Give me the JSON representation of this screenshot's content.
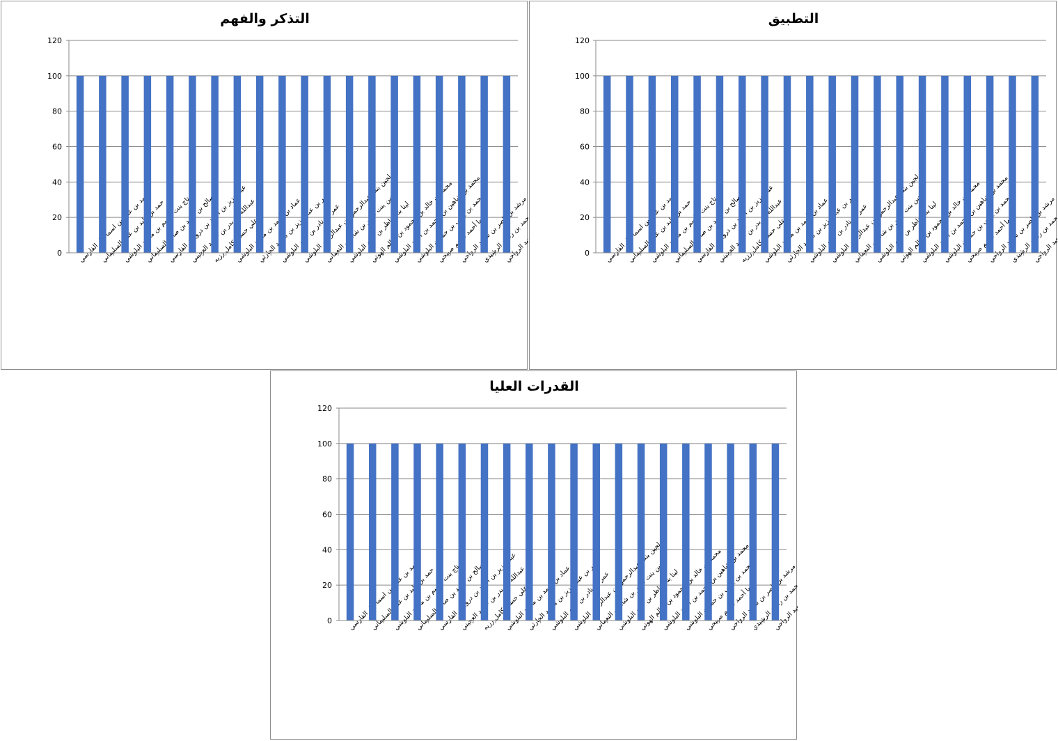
{
  "colors": {
    "bar": "#4472c4",
    "grid": "#8a8a8a",
    "border": "#8c8c8c"
  },
  "chart_data": [
    {
      "type": "bar",
      "title": "التذكر والفهم",
      "categories": [
        "أحمد بن علي بن اسماعيل الفارسي",
        "حمد بن وليد بن علي  السليماني",
        "رتاج بنت جاسم بن محمد البلوشي",
        "صالح بن أحمد بن صالح  السليماني",
        "عبدالعزيز بن أحمد بن درويش الفارسي",
        "عبدالله  بن بدر بن حمود العجيني",
        "علي حسام كامل رزيه",
        "عماد بن أحمد بن محمد  البلوشي",
        "عمر بن عبدالعزيز بن محمد الحارثي",
        "عمر بن  نادر بن غلام البلوشي",
        "لجين بنت عبدالرحمن بن عبدالرحيم البلوشي",
        "لجين بنت ناصر بن شامس النعماني",
        "لينا بنت ناظر بن غلام البلوشي",
        "محمد بن خالد بن محمود بن سالم الهوتي",
        "محمد بن شاهين بن محمد بن أحمد  البلوشي",
        "محمد بن يحيى بن حمدان البلوشي",
        "مها أحمد قاسم صبيحي",
        "مرشد بن ناصر بن سعيد الرواحي",
        "طارق بن محمد بن راشد الرشيدي",
        "ليث بن سليمان بن محمد بن سعيد الرواحي"
      ],
      "values": [
        100,
        100,
        100,
        100,
        100,
        100,
        100,
        100,
        100,
        100,
        100,
        100,
        100,
        100,
        100,
        100,
        100,
        100,
        100,
        100
      ],
      "ylim": [
        0,
        120
      ],
      "yticks": [
        0,
        20,
        40,
        60,
        80,
        100,
        120
      ],
      "grid": true,
      "legend": "none"
    },
    {
      "type": "bar",
      "title": "التطبيق",
      "categories": [
        "أحمد بن علي بن اسماعيل الفارسي",
        "حمد بن وليد بن علي  السليماني",
        "رتاج بنت جاسم بن محمد البلوشي",
        "صالح بن أحمد بن صالح  السليماني",
        "عبدالعزيز بن أحمد بن درويش الفارسي",
        "عبدالله  بن بدر بن حمود العجيني",
        "علي حسام كامل رزيه",
        "عماد بن أحمد بن محمد  البلوشي",
        "عمر بن عبدالعزيز بن محمد الحارثي",
        "عمر بن  نادر بن غلام البلوشي",
        "لجين بنت عبدالرحمن بن عبدالرحيم البلوشي",
        "لجين بنت ناصر بن شامس النعماني",
        "لينا بنت ناظر بن غلام البلوشي",
        "محمد بن خالد بن محمود بن سالم الهوتي",
        "محمد بن شاهين بن محمد بن أحمد  البلوشي",
        "محمد بن يحيى بن حمدان البلوشي",
        "مها أحمد قاسم صبيحي",
        "مرشد بن ناصر بن سعيد الرواحي",
        "طارق بن محمد بن راشد الرشيدي",
        "ليث بن سليمان بن محمد بن سعيد الرواحي"
      ],
      "values": [
        100,
        100,
        100,
        100,
        100,
        100,
        100,
        100,
        100,
        100,
        100,
        100,
        100,
        100,
        100,
        100,
        100,
        100,
        100,
        100
      ],
      "ylim": [
        0,
        120
      ],
      "yticks": [
        0,
        20,
        40,
        60,
        80,
        100,
        120
      ],
      "grid": true,
      "legend": "none"
    },
    {
      "type": "bar",
      "title": "القدرات العليا",
      "categories": [
        "أحمد بن علي بن اسماعيل الفارسي",
        "حمد بن وليد بن علي  السليماني",
        "رتاج بنت جاسم بن محمد البلوشي",
        "صالح بن أحمد بن صالح  السليماني",
        "عبدالعزيز بن أحمد بن درويش الفارسي",
        "عبدالله  بن بدر بن حمود العجيني",
        "علي حسام كامل رزيه",
        "عماد بن أحمد بن محمد  البلوشي",
        "عمر بن عبدالعزيز بن محمد الحارثي",
        "عمر بن  نادر بن غلام البلوشي",
        "لجين بنت عبدالرحمن بن عبدالرحيم البلوشي",
        "لجين بنت ناصر بن شامس النعماني",
        "لينا بنت ناظر بن غلام البلوشي",
        "محمد بن خالد بن محمود بن سالم الهوتي",
        "محمد بن شاهين بن محمد بن أحمد  البلوشي",
        "محمد بن يحيى بن حمدان البلوشي",
        "مها أحمد قاسم صبيحي",
        "مرشد بن ناصر بن سعيد الرواحي",
        "طارق بن محمد بن راشد الرشيدي",
        "ليث بن سليمان بن محمد بن سعيد الرواحي"
      ],
      "values": [
        100,
        100,
        100,
        100,
        100,
        100,
        100,
        100,
        100,
        100,
        100,
        100,
        100,
        100,
        100,
        100,
        100,
        100,
        100,
        100
      ],
      "ylim": [
        0,
        120
      ],
      "yticks": [
        0,
        20,
        40,
        60,
        80,
        100,
        120
      ],
      "grid": true,
      "legend": "none"
    }
  ]
}
